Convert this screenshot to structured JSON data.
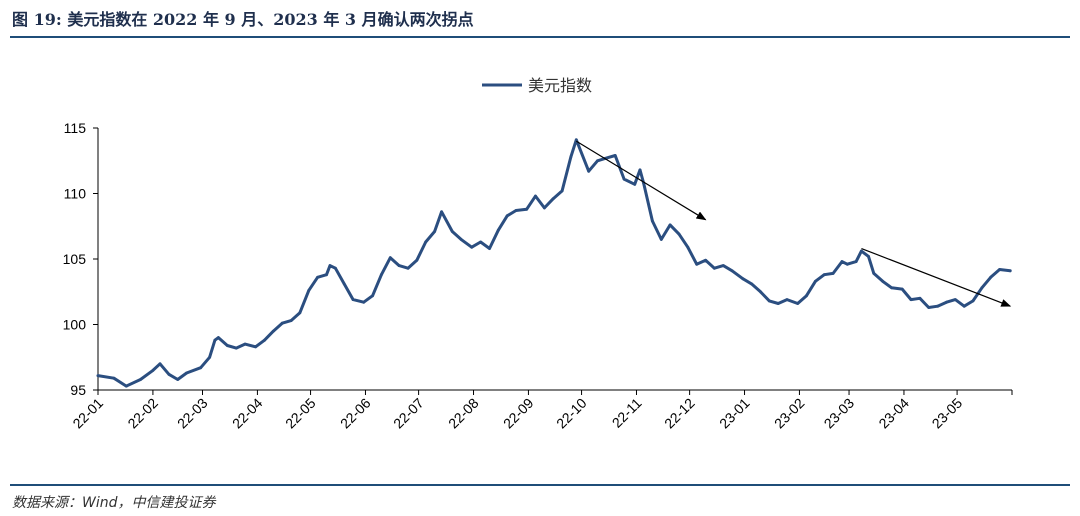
{
  "header": {
    "title": "图 19: 美元指数在 2022 年 9 月、2023 年 3 月确认两次拐点"
  },
  "footer": {
    "source": "数据来源：Wind，中信建投证券"
  },
  "colors": {
    "series": "#2b4e80",
    "rule": "#1f4e79",
    "arrow": "#000000"
  },
  "chart_data": {
    "type": "line",
    "title": "",
    "xlabel": "",
    "ylabel": "",
    "ylim": [
      95,
      115
    ],
    "yticks": [
      "95",
      "100",
      "105",
      "110",
      "115"
    ],
    "xticks": [
      "22-01",
      "22-02",
      "22-03",
      "22-04",
      "22-05",
      "22-06",
      "22-07",
      "22-08",
      "22-09",
      "22-10",
      "22-11",
      "22-12",
      "23-01",
      "23-02",
      "23-03",
      "23-04",
      "23-05"
    ],
    "legend": {
      "position": "top-center",
      "entries": [
        "美元指数"
      ]
    },
    "grid": false,
    "series": [
      {
        "name": "美元指数",
        "x": [
          "2022-01-01",
          "2022-01-10",
          "2022-01-17",
          "2022-01-25",
          "2022-02-01",
          "2022-02-05",
          "2022-02-10",
          "2022-02-15",
          "2022-02-20",
          "2022-02-28",
          "2022-03-05",
          "2022-03-08",
          "2022-03-10",
          "2022-03-15",
          "2022-03-20",
          "2022-03-25",
          "2022-03-31",
          "2022-04-05",
          "2022-04-10",
          "2022-04-15",
          "2022-04-20",
          "2022-04-25",
          "2022-04-30",
          "2022-05-05",
          "2022-05-10",
          "2022-05-12",
          "2022-05-15",
          "2022-05-20",
          "2022-05-25",
          "2022-05-31",
          "2022-06-05",
          "2022-06-10",
          "2022-06-15",
          "2022-06-20",
          "2022-06-25",
          "2022-06-30",
          "2022-07-05",
          "2022-07-10",
          "2022-07-14",
          "2022-07-20",
          "2022-07-25",
          "2022-07-31",
          "2022-08-05",
          "2022-08-10",
          "2022-08-15",
          "2022-08-20",
          "2022-08-25",
          "2022-08-31",
          "2022-09-05",
          "2022-09-10",
          "2022-09-15",
          "2022-09-20",
          "2022-09-25",
          "2022-09-28",
          "2022-10-05",
          "2022-10-10",
          "2022-10-15",
          "2022-10-20",
          "2022-10-25",
          "2022-10-31",
          "2022-11-03",
          "2022-11-05",
          "2022-11-10",
          "2022-11-15",
          "2022-11-20",
          "2022-11-25",
          "2022-11-30",
          "2022-12-05",
          "2022-12-10",
          "2022-12-15",
          "2022-12-20",
          "2022-12-25",
          "2022-12-31",
          "2023-01-05",
          "2023-01-10",
          "2023-01-15",
          "2023-01-20",
          "2023-01-25",
          "2023-01-31",
          "2023-02-05",
          "2023-02-10",
          "2023-02-15",
          "2023-02-20",
          "2023-02-25",
          "2023-02-28",
          "2023-03-05",
          "2023-03-08",
          "2023-03-12",
          "2023-03-15",
          "2023-03-20",
          "2023-03-25",
          "2023-03-31",
          "2023-04-05",
          "2023-04-10",
          "2023-04-15",
          "2023-04-20",
          "2023-04-25",
          "2023-04-30",
          "2023-05-05",
          "2023-05-10",
          "2023-05-15",
          "2023-05-20",
          "2023-05-25",
          "2023-05-31"
        ],
        "values": [
          96.1,
          95.9,
          95.3,
          95.8,
          96.5,
          97.0,
          96.2,
          95.8,
          96.3,
          96.7,
          97.5,
          98.8,
          99.0,
          98.4,
          98.2,
          98.5,
          98.3,
          98.8,
          99.5,
          100.1,
          100.3,
          100.9,
          102.6,
          103.6,
          103.8,
          104.5,
          104.3,
          103.1,
          101.9,
          101.7,
          102.2,
          103.8,
          105.1,
          104.5,
          104.3,
          104.9,
          106.3,
          107.1,
          108.6,
          107.1,
          106.5,
          105.9,
          106.3,
          105.8,
          107.2,
          108.3,
          108.7,
          108.8,
          109.8,
          108.9,
          109.6,
          110.2,
          112.8,
          114.1,
          111.7,
          112.5,
          112.7,
          112.9,
          111.1,
          110.7,
          111.8,
          110.8,
          107.9,
          106.5,
          107.6,
          106.9,
          105.9,
          104.6,
          104.9,
          104.3,
          104.5,
          104.1,
          103.5,
          103.1,
          102.5,
          101.8,
          101.6,
          101.9,
          101.6,
          102.2,
          103.3,
          103.8,
          103.9,
          104.8,
          104.6,
          104.8,
          105.6,
          105.2,
          103.9,
          103.3,
          102.8,
          102.7,
          101.9,
          102.0,
          101.3,
          101.4,
          101.7,
          101.9,
          101.4,
          101.8,
          102.8,
          103.6,
          104.2,
          104.1
        ]
      }
    ],
    "annotations": [
      {
        "type": "arrow",
        "from": [
          "2022-09-28",
          114.0
        ],
        "to": [
          "2022-12-10",
          108.0
        ]
      },
      {
        "type": "arrow",
        "from": [
          "2023-03-08",
          105.8
        ],
        "to": [
          "2023-05-31",
          101.4
        ]
      }
    ]
  }
}
